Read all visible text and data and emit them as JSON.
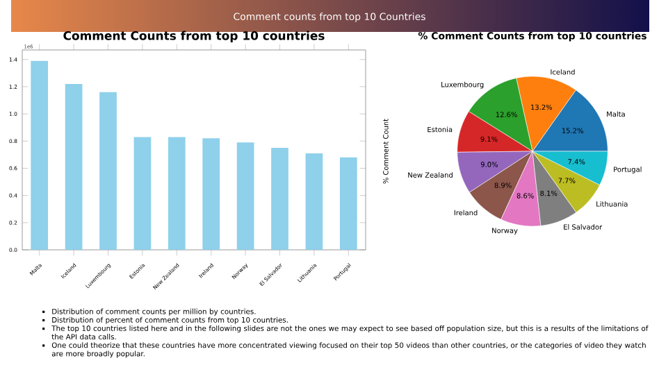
{
  "chart_data": [
    {
      "type": "other",
      "title": "Comment counts from top 10 Countries"
    },
    {
      "type": "bar",
      "title": "Comment Counts from top 10 countries",
      "categories": [
        "Malta",
        "Iceland",
        "Luxembourg",
        "Estonia",
        "New Zealand",
        "Ireland",
        "Norway",
        "El Salvador",
        "Lithuania",
        "Portugal"
      ],
      "values": [
        1.39,
        1.22,
        1.16,
        0.83,
        0.83,
        0.82,
        0.79,
        0.75,
        0.71,
        0.68
      ],
      "color": "#8fd0ea",
      "ylim": [
        0,
        1.47
      ],
      "yticks": [
        {
          "value": 0,
          "label": "0.0"
        },
        0.2,
        0.4,
        0.6,
        0.8,
        {
          "value": 1,
          "label": "1.0"
        },
        1.2,
        1.4
      ],
      "annotations": [
        "1e6"
      ]
    },
    {
      "type": "pie",
      "title": "% Comment Counts from top 10 countries",
      "ylabel": "% Comment Count",
      "categories": [
        "Malta",
        "Iceland",
        "Luxembourg",
        "Estonia",
        "New Zealand",
        "Ireland",
        "Norway",
        "El Salvador",
        "Lithuania",
        "Portugal"
      ],
      "values": [
        15.2,
        13.2,
        12.6,
        9.1,
        9.0,
        8.9,
        8.6,
        8.1,
        7.7,
        7.4
      ],
      "value_labels": [
        "15.2%",
        "13.2%",
        "12.6%",
        "9.1%",
        "9.0%",
        "8.9%",
        "8.6%",
        "8.1%",
        "7.7%",
        "7.4%"
      ],
      "colors": [
        "#1f77b4",
        "#ff7f0e",
        "#2ca02c",
        "#d62728",
        "#9467bd",
        "#8c564b",
        "#e377c2",
        "#7f7f7f",
        "#bcbd22",
        "#17becf"
      ]
    },
    {
      "type": "other",
      "annotations": [
        "Distribution of comment counts per million by countries.",
        "Distribution of percent of comment counts from top 10 countries.",
        "The top 10 countries listed here and in the following slides are not the ones we may expect to see based off population size, but this is a results of the limitations of the API data calls.",
        "One could theorize that these countries have more concentrated viewing focused on their top 50 videos than other countries, or the categories of video they watch are more broadly popular."
      ]
    }
  ]
}
